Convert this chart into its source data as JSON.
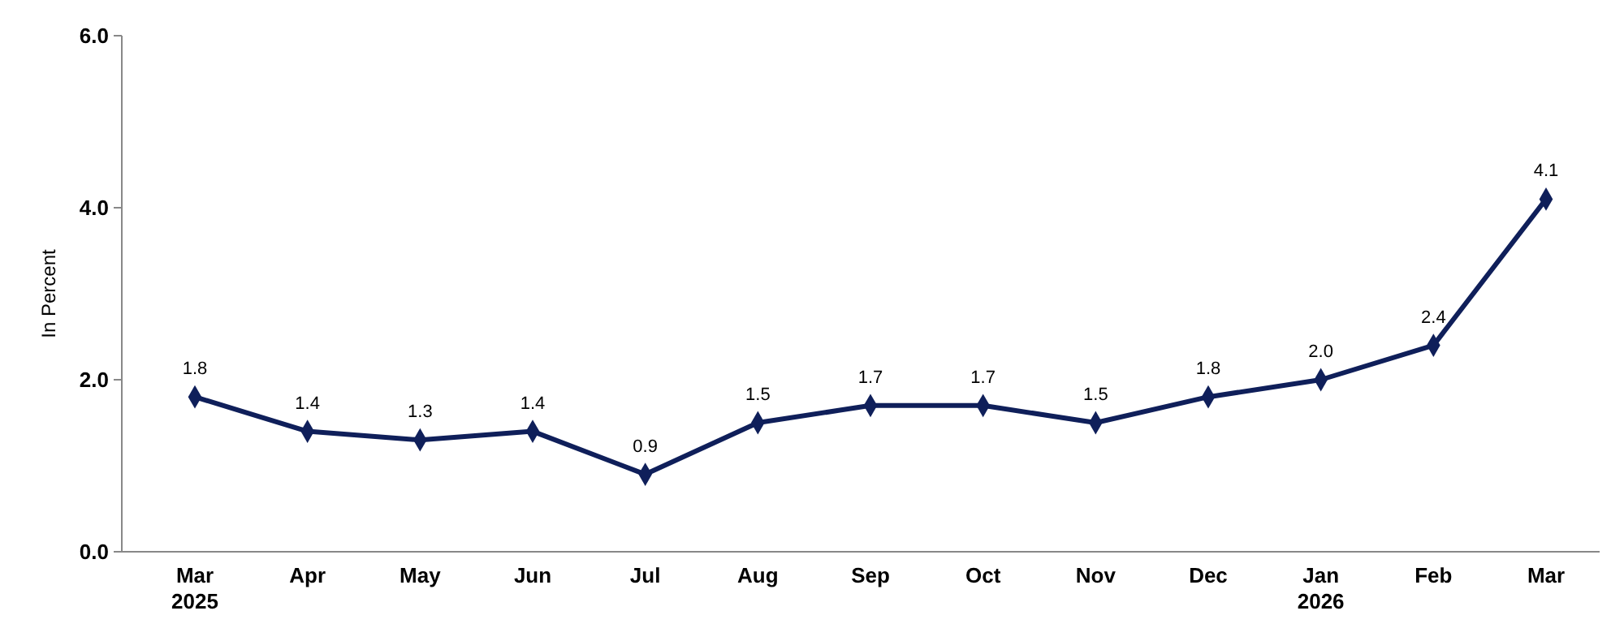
{
  "chart_data": {
    "type": "line",
    "ylabel": "In Percent",
    "categories": [
      "Mar 2025",
      "Apr",
      "May",
      "Jun",
      "Jul",
      "Aug",
      "Sep",
      "Oct",
      "Nov",
      "Dec",
      "Jan 2026",
      "Feb",
      "Mar"
    ],
    "series": [
      {
        "color": "#0f1f5a",
        "values": [
          1.8,
          1.4,
          1.3,
          1.4,
          0.9,
          1.5,
          1.7,
          1.7,
          1.5,
          1.8,
          2.0,
          2.4,
          4.1
        ],
        "value_labels": [
          "1.8",
          "1.4",
          "1.3",
          "1.4",
          "0.9",
          "1.5",
          "1.7",
          "1.7",
          "1.5",
          "1.8",
          "2.0",
          "2.4",
          "4.1"
        ]
      }
    ],
    "ylim": [
      0,
      6
    ],
    "yticks": [
      {
        "value": 0,
        "label": "0.0"
      },
      {
        "value": 2,
        "label": "2.0"
      },
      {
        "value": 4,
        "label": "4.0"
      },
      {
        "value": 6,
        "label": "6.0"
      }
    ],
    "grid": false,
    "marker": "diamond",
    "line_style": "solid"
  }
}
